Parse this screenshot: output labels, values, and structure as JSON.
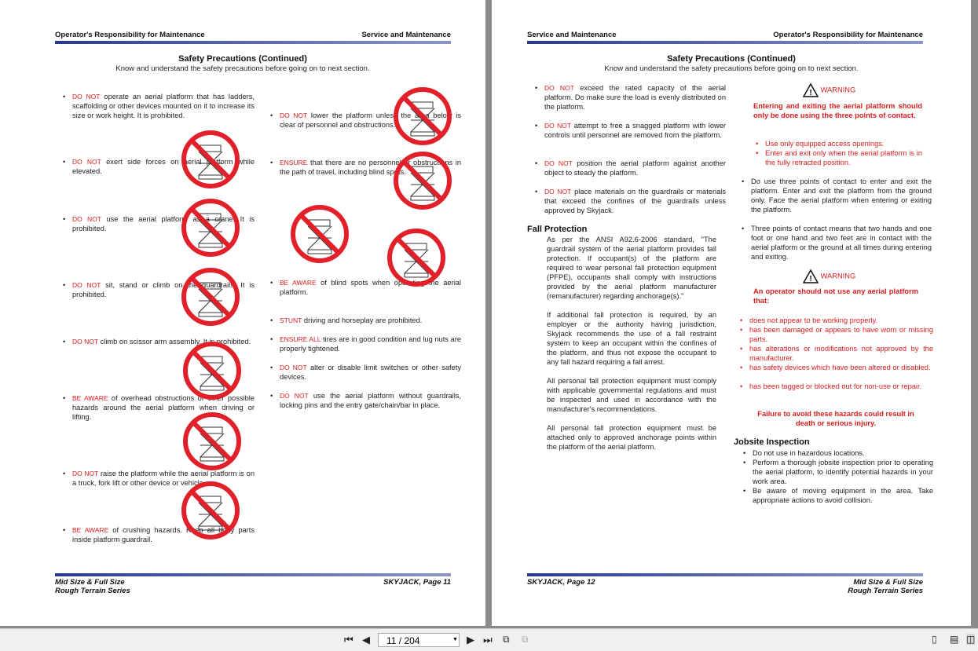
{
  "left_page": {
    "header_left": "Operator's Responsibility for Maintenance",
    "header_right": "Service and Maintenance",
    "title": "Safety Precautions (Continued)",
    "subtitle": "Know and understand the safety precautions before going on to next section.",
    "col1": [
      {
        "k": "DO NOT",
        "t": " operate an aerial platform that has ladders, scaffolding or other devices mounted on it to increase its size or work height. It is prohibited."
      },
      {
        "k": "DO NOT",
        "t": " exert side forces on aerial platform while elevated."
      },
      {
        "k": "DO NOT",
        "t": " use the aerial platform as a crane. It is prohibited."
      },
      {
        "k": "DO NOT",
        "t": " sit, stand or climb on the guardrails. It is prohibited."
      },
      {
        "k": "DO NOT",
        "t": " climb on scissor arm assembly. It is prohibited."
      },
      {
        "k": "BE AWARE",
        "t": " of overhead obstructions or other possible hazards around the aerial platform when driving or lifting."
      },
      {
        "k": "DO NOT",
        "t": " raise the platform while the aerial platform is on a truck, fork lift or other device or vehicle."
      },
      {
        "k": "BE AWARE",
        "t": " of crushing hazards. Keep all body parts inside platform guardrail."
      }
    ],
    "col2": [
      {
        "k": "DO NOT",
        "t": " lower the platform unless the area below is clear of personnel and obstructions."
      },
      {
        "k": "ENSURE",
        "t": " that there are no personnel or obstructions in the path of travel, including blind spots."
      },
      {
        "k": "BE AWARE",
        "t": " of blind spots when operating the aerial platform."
      },
      {
        "k": "STUNT",
        "t": " driving and horseplay are prohibited."
      },
      {
        "k": "ENSURE ALL",
        "t": " tires are in good condition and lug nuts are properly tightened."
      },
      {
        "k": "DO NOT",
        "t": " alter or disable limit switches or other safety devices."
      },
      {
        "k": "DO NOT",
        "t": " use the aerial platform without guardrails, locking pins and the entry gate/chain/bar in place."
      }
    ],
    "footer_left": "Mid Size & Full Size",
    "footer_left2": "Rough Terrain Series",
    "footer_right": "SKYJACK, Page 11"
  },
  "right_page": {
    "header_left": "Service and Maintenance",
    "header_right": "Operator's Responsibility for Maintenance",
    "title": "Safety Precautions (Continued)",
    "subtitle": "Know and understand the safety precautions before going on to next section.",
    "col1": [
      {
        "k": "DO NOT",
        "t": " exceed the rated capacity of the aerial platform. Do make sure the load is evenly distributed on the platform."
      },
      {
        "k": "DO NOT",
        "t": " attempt to free a snagged platform with lower controls until personnel are removed from the platform."
      },
      {
        "k": "DO NOT",
        "t": " position the aerial platform against another object to steady the platform."
      },
      {
        "k": "DO NOT",
        "t": " place materials on the guardrails or materials that exceed the confines of the guardrails unless approved by Skyjack."
      }
    ],
    "fall_heading": "Fall Protection",
    "fall_paras": [
      "As per the ANSI A92.6-2006 standard, \"The guardrail system of the aerial platform provides fall protection. If occupant(s) of the platform are required to wear personal fall protection equipment (PFPE), occupants shall comply with instructions provided by the aerial platform manufacturer (remanufacturer) regarding anchorage(s).\"",
      "If additional fall protection is required, by an employer or the authority having jurisdiction, Skyjack recommends the use of a fall restraint system to keep an occupant within the confines of the platform, and thus not expose the occupant to any fall hazard requiring a fall arrest.",
      "All personal fall protection equipment must comply with applicable governmental regulations and must be inspected and used in accordance with the manufacturer's recommendations.",
      "All personal fall protection equipment must be attached only to approved anchorage points within the platform of the aerial platform."
    ],
    "warning_label": "WARNING",
    "warn1_text": "Entering and exiting the aerial platform should only be done using the three points of contact.",
    "warn1_bullets": [
      "Use only equipped access openings.",
      "Enter and exit only when the aerial platform is in the fully retracted position."
    ],
    "col2_bullets": [
      "Do use three points of contact to enter and exit the platform. Enter and exit the platform from the ground only. Face the aerial platform when entering or exiting the platform.",
      "Three points of contact means that two hands and one foot or one hand and two feet are in contact with the aerial platform or the ground at all times during entering and exiting."
    ],
    "warn2_text": "An operator should not use any aerial platform that:",
    "warn2_bullets": [
      "does not appear to be working properly.",
      "has been damaged or appears to have worn or missing parts.",
      "has alterations or modifications not approved by the manufacturer.",
      "has safety devices which have been altered or disabled.",
      "has been tagged or blocked out for non-use or repair."
    ],
    "failure_text": "Failure to avoid these hazards could result in death or serious injury.",
    "jobsite_heading": "Jobsite Inspection",
    "jobsite_items": [
      "Do not use in hazardous locations.",
      "Perform a thorough jobsite inspection prior to operating the aerial platform, to identify potential hazards in your work area.",
      "Be aware of moving equipment in the area. Take appropriate actions to avoid collision."
    ],
    "footer_left": "SKYJACK, Page 12",
    "footer_right": "Mid Size & Full Size",
    "footer_right2": "Rough Terrain Series"
  },
  "toolbar": {
    "page_indicator": "11 / 204",
    "icons": [
      "first-page-icon",
      "prev-page-icon",
      "next-page-icon",
      "last-page-icon",
      "fit-page-icon",
      "fit-width-icon",
      "single-page-icon",
      "continuous-icon",
      "two-page-icon"
    ]
  },
  "colors": {
    "accent_red": "#d81e1e",
    "bar_blue": "#2a3a8c"
  }
}
